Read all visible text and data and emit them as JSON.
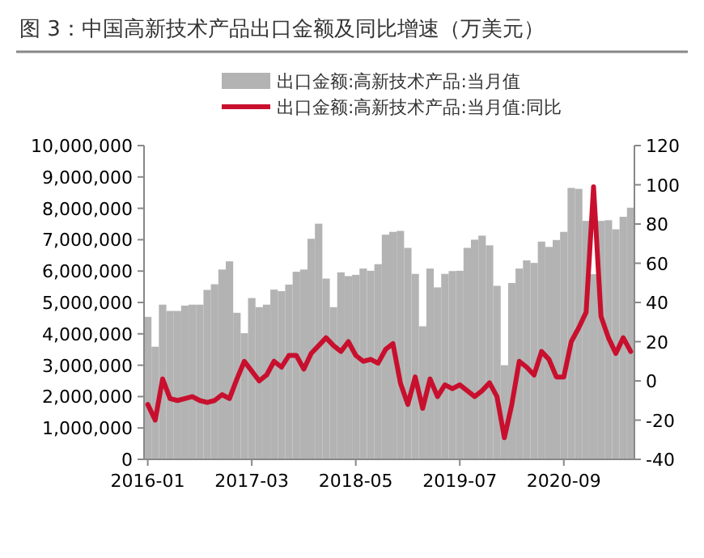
{
  "chart_data": {
    "type": "bar",
    "title": "图 3：中国高新技术产品出口金额及同比增速（万美元）",
    "categories": [
      "2016-01",
      null,
      null,
      null,
      null,
      null,
      null,
      null,
      null,
      null,
      null,
      null,
      null,
      null,
      "2017-03",
      null,
      null,
      null,
      null,
      null,
      null,
      null,
      null,
      null,
      null,
      null,
      null,
      null,
      "2018-05",
      null,
      null,
      null,
      null,
      null,
      null,
      null,
      null,
      null,
      null,
      null,
      null,
      null,
      "2019-07",
      null,
      null,
      null,
      null,
      null,
      null,
      null,
      null,
      null,
      null,
      null,
      null,
      null,
      "2020-09",
      null,
      null,
      null,
      null,
      null,
      null,
      null,
      null,
      null
    ],
    "series": [
      {
        "name": "出口金额:高新技术产品:当月值",
        "color": "#b3b3b3",
        "values": [
          4540000,
          3590000,
          4930000,
          4730000,
          4730000,
          4900000,
          4930000,
          4930000,
          5400000,
          5580000,
          6050000,
          6310000,
          4670000,
          4020000,
          5140000,
          4850000,
          4930000,
          5410000,
          5360000,
          5570000,
          5980000,
          6050000,
          7030000,
          7510000,
          5760000,
          4850000,
          5960000,
          5840000,
          5880000,
          6080000,
          6010000,
          6220000,
          7160000,
          7250000,
          7280000,
          6740000,
          5910000,
          4240000,
          6080000,
          5480000,
          5910000,
          6000000,
          6010000,
          6740000,
          7000000,
          7130000,
          6820000,
          5530000,
          3000000,
          5620000,
          6080000,
          6340000,
          6260000,
          6940000,
          6770000,
          6990000,
          7250000,
          8650000,
          8620000,
          7600000,
          5900000,
          7600000,
          7620000,
          7330000,
          7730000,
          8020000
        ]
      },
      {
        "name": "出口金额:高新技术产品:当月值:同比",
        "type": "line",
        "axis": "y2",
        "color": "#c8102e",
        "values": [
          -12,
          -20,
          1,
          -9,
          -10,
          -9,
          -8,
          -10,
          -11,
          -10,
          -7,
          -9,
          1,
          10,
          5,
          0,
          3,
          10,
          7,
          13,
          13,
          6,
          14,
          18,
          22,
          18,
          15,
          20,
          13,
          10,
          11,
          9,
          16,
          19,
          -1,
          -12,
          2,
          -14,
          1,
          -8,
          -2,
          -4,
          -2,
          -5,
          -8,
          -5,
          -1,
          -8,
          -29,
          -12,
          10,
          7,
          3,
          15,
          11,
          2,
          2,
          20,
          27,
          35,
          99,
          33,
          22,
          14,
          22,
          15
        ]
      }
    ],
    "ylim": [
      0,
      10000000
    ],
    "yticks": [
      {
        "value": 0,
        "label": "0"
      },
      {
        "value": 1000000,
        "label": "1,000,000"
      },
      {
        "value": 2000000,
        "label": "2,000,000"
      },
      {
        "value": 3000000,
        "label": "3,000,000"
      },
      {
        "value": 4000000,
        "label": "4,000,000"
      },
      {
        "value": 5000000,
        "label": "5,000,000"
      },
      {
        "value": 6000000,
        "label": "6,000,000"
      },
      {
        "value": 7000000,
        "label": "7,000,000"
      },
      {
        "value": 8000000,
        "label": "8,000,000"
      },
      {
        "value": 9000000,
        "label": "9,000,000"
      },
      {
        "value": 10000000,
        "label": "10,000,000"
      }
    ],
    "y2lim": [
      -40,
      120
    ],
    "y2ticks": [
      -40,
      -20,
      0,
      20,
      40,
      60,
      80,
      100,
      120
    ],
    "legend": "top",
    "grid": false
  }
}
